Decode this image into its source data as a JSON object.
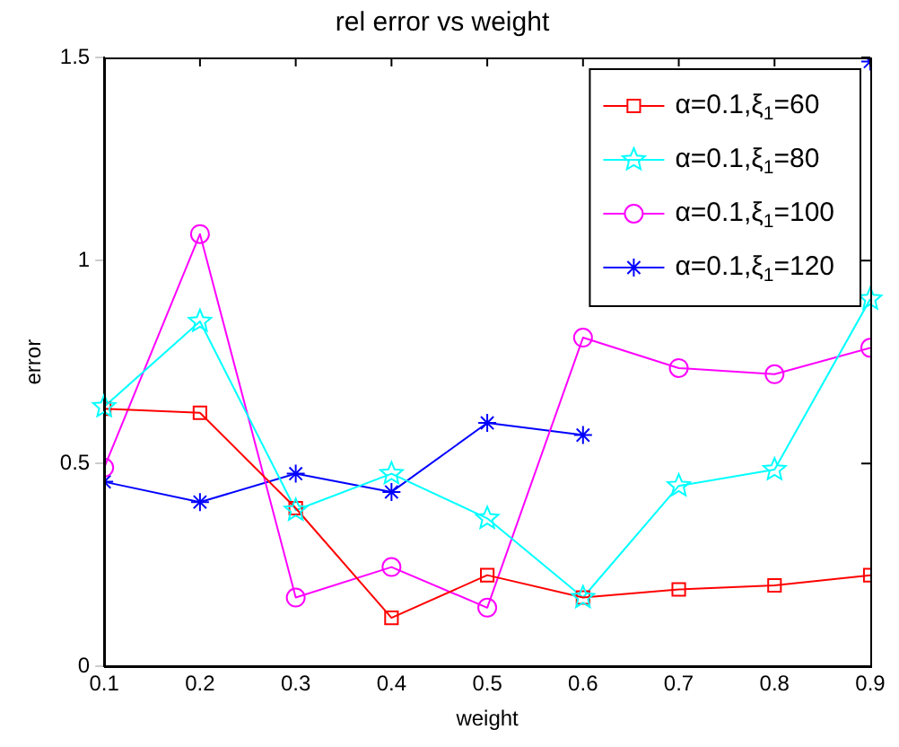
{
  "chart_data": {
    "type": "line",
    "title": "rel error vs weight",
    "xlabel": "weight",
    "ylabel": "error",
    "x": [
      0.1,
      0.2,
      0.3,
      0.4,
      0.5,
      0.6,
      0.7,
      0.8,
      0.9
    ],
    "xlim": [
      0.1,
      0.9
    ],
    "xticks": [
      0.1,
      0.2,
      0.3,
      0.4,
      0.5,
      0.6,
      0.7,
      0.8,
      0.9
    ],
    "ylim": [
      0,
      1.5
    ],
    "yticks": [
      0,
      0.5,
      1,
      1.5
    ],
    "grid": false,
    "legend": "top right",
    "series": [
      {
        "name": "α=0.1,ξ$_{1}$=60",
        "color": "#ff0000",
        "marker": "square",
        "values": [
          0.635,
          0.625,
          0.39,
          0.12,
          0.225,
          0.17,
          0.19,
          0.2,
          0.225
        ]
      },
      {
        "name": "α=0.1,ξ$_{1}$=80",
        "color": "#00ffff",
        "marker": "star",
        "values": [
          0.64,
          0.85,
          0.385,
          0.475,
          0.365,
          0.17,
          0.445,
          0.485,
          0.905
        ]
      },
      {
        "name": "α=0.1,ξ$_{1}$=100",
        "color": "#ff00ff",
        "marker": "circle",
        "values": [
          0.49,
          1.065,
          0.17,
          0.245,
          0.145,
          0.81,
          0.735,
          0.72,
          0.785
        ]
      },
      {
        "name": "α=0.1,ξ$_{1}$=120",
        "color": "#0000ff",
        "marker": "cross",
        "values": [
          0.455,
          0.405,
          0.475,
          0.43,
          0.6,
          0.57,
          null,
          null,
          1.49
        ]
      }
    ]
  }
}
